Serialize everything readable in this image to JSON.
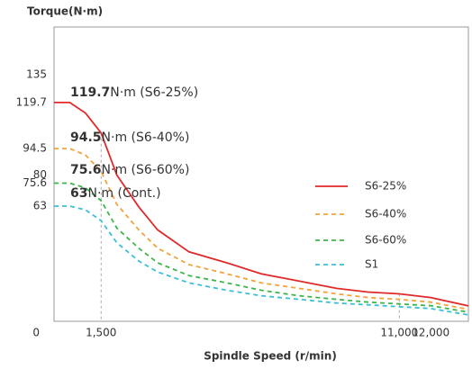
{
  "chart_data": {
    "type": "line",
    "y_label": "Torque(N·m)",
    "x_label": "Spindle Speed (r/min)",
    "x": [
      0,
      500,
      1000,
      1500,
      2000,
      2700,
      3300,
      4300,
      5500,
      6600,
      7800,
      9000,
      10000,
      11000,
      12000,
      13200
    ],
    "series": [
      {
        "name": "S6-25%",
        "color": "#e02a2a",
        "dashed": false,
        "values": [
          119.7,
          119.7,
          114,
          103,
          80,
          62.6,
          50,
          38,
          32,
          26,
          22,
          18,
          16,
          15,
          13,
          8.4
        ]
      },
      {
        "name": "S6-40%",
        "color": "#f4a23a",
        "dashed": true,
        "values": [
          94.5,
          94.5,
          91,
          82,
          64,
          50,
          40,
          31,
          26,
          21,
          18,
          15,
          13,
          12,
          10.5,
          6.5
        ]
      },
      {
        "name": "S6-60%",
        "color": "#3db54a",
        "dashed": true,
        "values": [
          75.6,
          75.6,
          73,
          66,
          51,
          40,
          32,
          25,
          21,
          17,
          14,
          12,
          10.5,
          9.5,
          8.5,
          5
        ]
      },
      {
        "name": "S1",
        "color": "#3bbfd6",
        "dashed": true,
        "values": [
          63,
          63,
          61,
          55,
          43,
          33,
          27,
          21,
          17,
          14,
          12,
          10,
          9,
          8,
          7,
          3.5
        ]
      }
    ],
    "annotations": [
      {
        "value_text": "119.7",
        "text": "N·m (S6-25%)"
      },
      {
        "value_text": "94.5",
        "text": "N·m (S6-40%)"
      },
      {
        "value_text": "75.6",
        "text": "N·m (S6-60%)"
      },
      {
        "value_text": "63",
        "text": "N·m (Cont.)"
      }
    ],
    "xlim": [
      0,
      13200
    ],
    "ylim": [
      0,
      161
    ],
    "xticks": [
      {
        "value": 0,
        "label": "0"
      },
      {
        "value": 1500,
        "label": "1,500"
      },
      {
        "value": 11000,
        "label": "11,000"
      },
      {
        "value": 12000,
        "label": "12,000"
      }
    ],
    "yticks": [
      63,
      75.6,
      80,
      94.5,
      119.7,
      135
    ],
    "reference_lines_x": [
      1500,
      11000
    ],
    "legend": "right"
  }
}
